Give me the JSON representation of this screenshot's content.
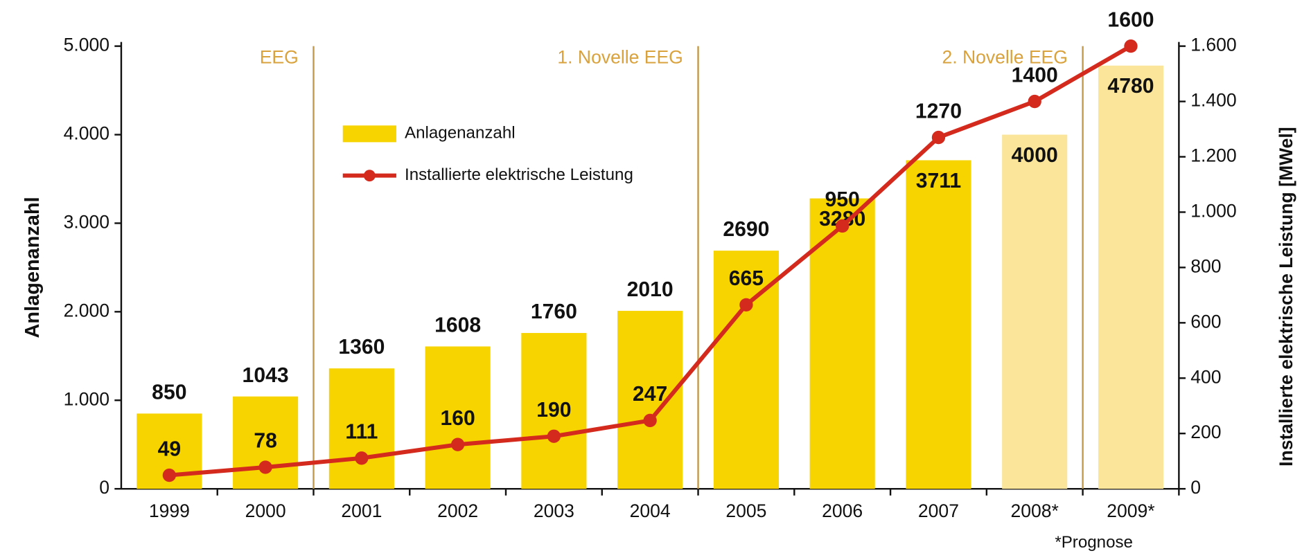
{
  "chart_data": {
    "type": "bar_line",
    "categories": [
      "1999",
      "2000",
      "2001",
      "2002",
      "2003",
      "2004",
      "2005",
      "2006",
      "2007",
      "2008*",
      "2009*"
    ],
    "series": [
      {
        "name": "Anlagenanzahl",
        "type": "bar",
        "color": "#f7d400",
        "colors": [
          "#f7d400",
          "#f7d400",
          "#f7d400",
          "#f7d400",
          "#f7d400",
          "#f7d400",
          "#f7d400",
          "#f7d400",
          "#f7d400",
          "#fae59a",
          "#fae59a"
        ],
        "values": [
          850,
          1043,
          1360,
          1608,
          1760,
          2010,
          2690,
          3280,
          3711,
          4000,
          4780
        ]
      },
      {
        "name": "Installierte elektrische Leistung",
        "type": "line",
        "color": "#d42a1e",
        "axis": "y2",
        "values": [
          49,
          78,
          111,
          160,
          190,
          247,
          665,
          950,
          1270,
          1400,
          1600
        ]
      }
    ],
    "ylabel": "Anlagenanzahl",
    "y2label": "Installierte elektrische Leistung [MWel]",
    "ylim": [
      0,
      5000
    ],
    "yticks": [
      0,
      {
        "value": 1000,
        "label": "1.000"
      },
      {
        "value": 2000,
        "label": "2.000"
      },
      {
        "value": 3000,
        "label": "3.000"
      },
      {
        "value": 4000,
        "label": "4.000"
      },
      {
        "value": 5000,
        "label": "5.000"
      }
    ],
    "y2lim": [
      0,
      1600
    ],
    "y2ticks": [
      0,
      200,
      400,
      600,
      800,
      {
        "value": 1000,
        "label": "1.000"
      },
      {
        "value": 1200,
        "label": "1.200"
      },
      {
        "value": 1400,
        "label": "1.400"
      },
      {
        "value": 1600,
        "label": "1.600"
      }
    ],
    "annotations": [
      "EEG",
      "1. Novelle EEG",
      "2. Novelle EEG"
    ],
    "footnote": "*Prognose",
    "grid": false
  }
}
